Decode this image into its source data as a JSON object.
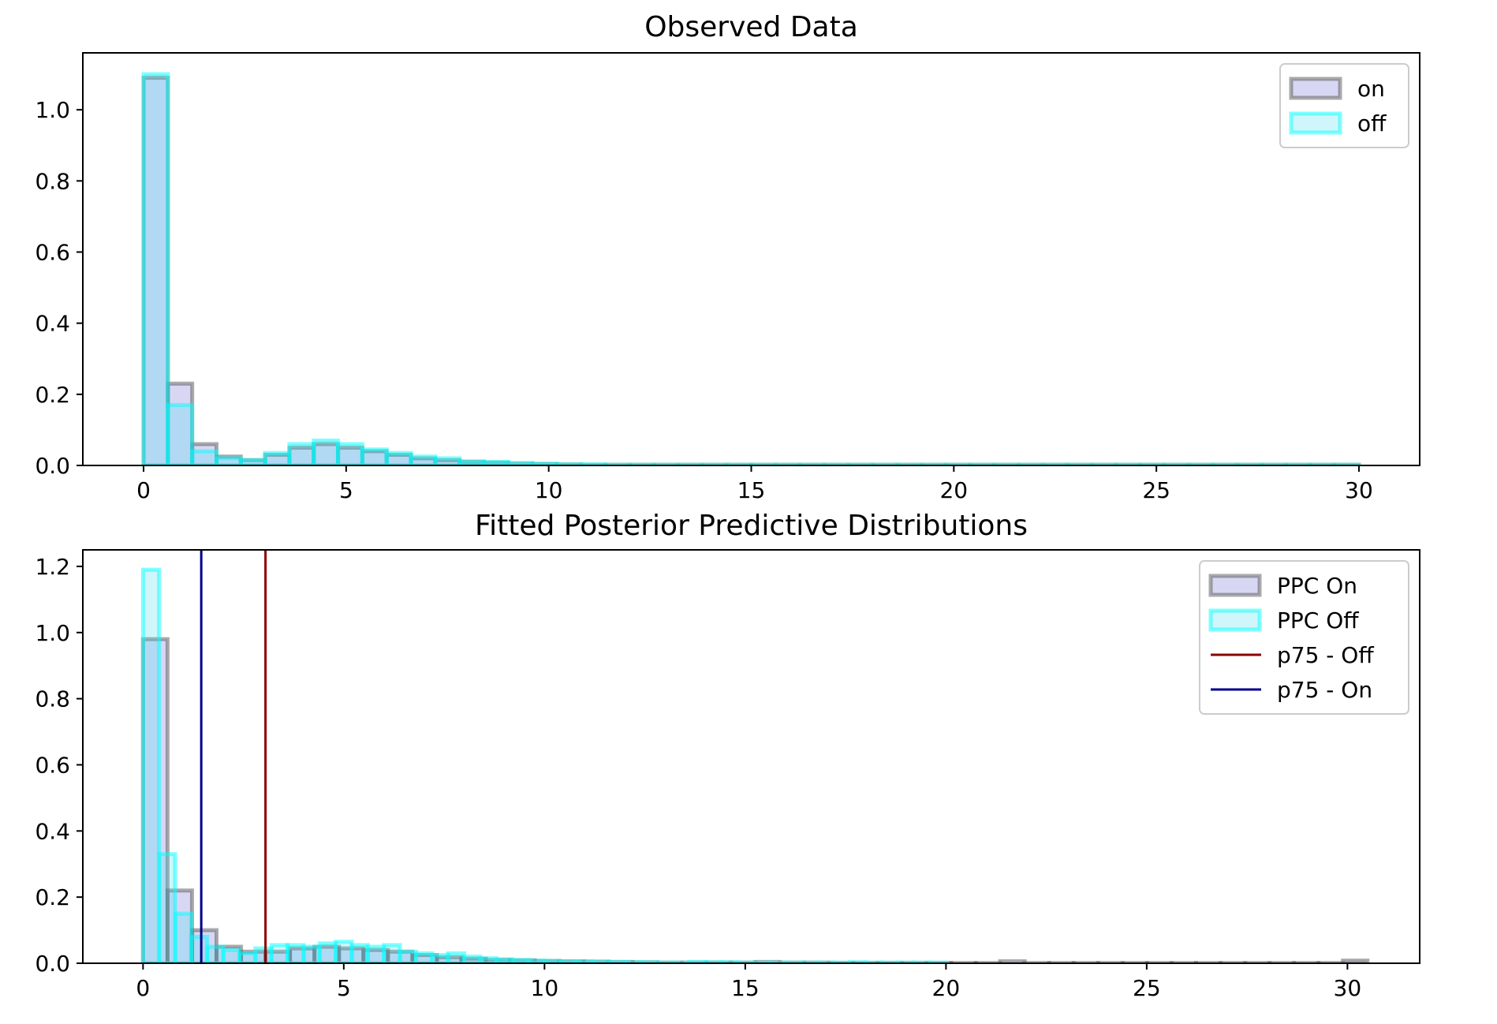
{
  "chart_data": [
    {
      "type": "histogram",
      "title": "Observed Data",
      "xlabel": "",
      "ylabel": "",
      "xlim": [
        -1.5,
        31.5
      ],
      "ylim": [
        0,
        1.16
      ],
      "xticks": [
        0,
        5,
        10,
        15,
        20,
        25,
        30
      ],
      "yticks": [
        0.0,
        0.2,
        0.4,
        0.6,
        0.8,
        1.0
      ],
      "ytick_format": 1,
      "grid": false,
      "legend_position": "top-right",
      "bin_width": 0.6,
      "series": [
        {
          "name": "on",
          "style": "on",
          "bins": [
            [
              0.0,
              1.09
            ],
            [
              0.6,
              0.23
            ],
            [
              1.2,
              0.06
            ],
            [
              1.8,
              0.025
            ],
            [
              2.4,
              0.015
            ],
            [
              3.0,
              0.03
            ],
            [
              3.6,
              0.05
            ],
            [
              4.2,
              0.06
            ],
            [
              4.8,
              0.05
            ],
            [
              5.4,
              0.04
            ],
            [
              6.0,
              0.03
            ],
            [
              6.6,
              0.02
            ],
            [
              7.2,
              0.015
            ],
            [
              7.8,
              0.01
            ],
            [
              8.4,
              0.008
            ],
            [
              9.0,
              0.005
            ],
            [
              9.6,
              0.004
            ],
            [
              10.2,
              0.003
            ],
            [
              10.8,
              0.002
            ],
            [
              11.4,
              0.002
            ],
            [
              12.0,
              0.002
            ],
            [
              12.6,
              0.002
            ],
            [
              13.2,
              0.002
            ],
            [
              13.8,
              0.002
            ],
            [
              14.4,
              0.002
            ],
            [
              15.0,
              0.002
            ],
            [
              15.6,
              0.002
            ],
            [
              16.2,
              0.002
            ],
            [
              16.8,
              0.002
            ],
            [
              17.4,
              0.002
            ],
            [
              18.0,
              0.002
            ],
            [
              18.6,
              0.002
            ],
            [
              19.2,
              0.002
            ],
            [
              19.8,
              0.002
            ],
            [
              20.4,
              0.002
            ],
            [
              21.0,
              0.002
            ],
            [
              21.6,
              0.002
            ],
            [
              22.2,
              0.002
            ],
            [
              22.8,
              0.002
            ],
            [
              23.4,
              0.002
            ],
            [
              24.0,
              0.002
            ],
            [
              24.6,
              0.002
            ],
            [
              25.2,
              0.002
            ],
            [
              25.8,
              0.002
            ],
            [
              26.4,
              0.002
            ],
            [
              27.0,
              0.002
            ],
            [
              27.6,
              0.002
            ],
            [
              28.2,
              0.002
            ],
            [
              28.8,
              0.002
            ],
            [
              29.4,
              0.002
            ]
          ]
        },
        {
          "name": "off",
          "style": "off",
          "bins": [
            [
              0.0,
              1.1
            ],
            [
              0.6,
              0.17
            ],
            [
              1.2,
              0.04
            ],
            [
              1.8,
              0.02
            ],
            [
              2.4,
              0.015
            ],
            [
              3.0,
              0.035
            ],
            [
              3.6,
              0.06
            ],
            [
              4.2,
              0.07
            ],
            [
              4.8,
              0.06
            ],
            [
              5.4,
              0.045
            ],
            [
              6.0,
              0.035
            ],
            [
              6.6,
              0.025
            ],
            [
              7.2,
              0.02
            ],
            [
              7.8,
              0.012
            ],
            [
              8.4,
              0.01
            ],
            [
              9.0,
              0.007
            ],
            [
              9.6,
              0.005
            ],
            [
              10.2,
              0.003
            ],
            [
              10.8,
              0.003
            ],
            [
              11.4,
              0.002
            ],
            [
              12.0,
              0.002
            ],
            [
              12.6,
              0.002
            ],
            [
              13.2,
              0.002
            ],
            [
              13.8,
              0.002
            ],
            [
              14.4,
              0.002
            ],
            [
              15.0,
              0.002
            ],
            [
              15.6,
              0.002
            ],
            [
              16.2,
              0.002
            ],
            [
              16.8,
              0.002
            ],
            [
              17.4,
              0.002
            ],
            [
              18.0,
              0.002
            ],
            [
              18.6,
              0.002
            ],
            [
              19.2,
              0.002
            ],
            [
              19.8,
              0.002
            ],
            [
              20.4,
              0.002
            ],
            [
              21.0,
              0.002
            ],
            [
              21.6,
              0.002
            ],
            [
              22.2,
              0.002
            ],
            [
              22.8,
              0.002
            ],
            [
              23.4,
              0.002
            ],
            [
              24.0,
              0.002
            ],
            [
              24.6,
              0.002
            ],
            [
              25.2,
              0.002
            ],
            [
              25.8,
              0.002
            ],
            [
              26.4,
              0.002
            ],
            [
              27.0,
              0.002
            ],
            [
              27.6,
              0.002
            ],
            [
              28.2,
              0.002
            ],
            [
              28.8,
              0.002
            ],
            [
              29.4,
              0.002
            ]
          ]
        }
      ],
      "vlines": []
    },
    {
      "type": "histogram",
      "title": "Fitted Posterior Predictive Distributions",
      "xlabel": "",
      "ylabel": "",
      "xlim": [
        -1.5,
        31.8
      ],
      "ylim": [
        0,
        1.25
      ],
      "xticks": [
        0,
        5,
        10,
        15,
        20,
        25,
        30
      ],
      "yticks": [
        0.0,
        0.2,
        0.4,
        0.6,
        0.8,
        1.0,
        1.2
      ],
      "ytick_format": 1,
      "grid": false,
      "legend_position": "top-right",
      "series": [
        {
          "name": "PPC On",
          "style": "on",
          "bin_width": 0.61,
          "bins": [
            [
              0.0,
              0.98
            ],
            [
              0.61,
              0.22
            ],
            [
              1.22,
              0.1
            ],
            [
              1.83,
              0.05
            ],
            [
              2.44,
              0.035
            ],
            [
              3.05,
              0.035
            ],
            [
              3.66,
              0.045
            ],
            [
              4.27,
              0.05
            ],
            [
              4.88,
              0.045
            ],
            [
              5.49,
              0.04
            ],
            [
              6.1,
              0.035
            ],
            [
              6.71,
              0.025
            ],
            [
              7.32,
              0.018
            ],
            [
              7.93,
              0.014
            ],
            [
              8.54,
              0.01
            ],
            [
              9.15,
              0.009
            ],
            [
              9.76,
              0.007
            ],
            [
              10.37,
              0.006
            ],
            [
              10.98,
              0.005
            ],
            [
              11.59,
              0.004
            ],
            [
              12.2,
              0.003
            ],
            [
              12.81,
              0.002
            ],
            [
              13.42,
              0.002
            ],
            [
              14.03,
              0.002
            ],
            [
              14.64,
              0.002
            ],
            [
              15.25,
              0.004
            ],
            [
              15.86,
              0.002
            ],
            [
              16.47,
              0.002
            ],
            [
              17.08,
              0.001
            ],
            [
              17.69,
              0.001
            ],
            [
              18.3,
              0.001
            ],
            [
              18.91,
              0.001
            ],
            [
              19.52,
              0.001
            ],
            [
              20.13,
              0.001
            ],
            [
              20.74,
              0.001
            ],
            [
              21.35,
              0.006
            ],
            [
              21.96,
              0.001
            ],
            [
              22.57,
              0.001
            ],
            [
              23.18,
              0.001
            ],
            [
              23.79,
              0.001
            ],
            [
              24.4,
              0.001
            ],
            [
              25.01,
              0.001
            ],
            [
              25.62,
              0.001
            ],
            [
              26.23,
              0.001
            ],
            [
              26.84,
              0.001
            ],
            [
              27.45,
              0.001
            ],
            [
              28.06,
              0.001
            ],
            [
              28.67,
              0.001
            ],
            [
              29.28,
              0.001
            ],
            [
              29.89,
              0.008
            ]
          ]
        },
        {
          "name": "PPC Off",
          "style": "off",
          "bin_width": 0.4,
          "bins": [
            [
              0.0,
              1.19
            ],
            [
              0.4,
              0.33
            ],
            [
              0.8,
              0.15
            ],
            [
              1.2,
              0.08
            ],
            [
              1.6,
              0.05
            ],
            [
              2.0,
              0.04
            ],
            [
              2.4,
              0.03
            ],
            [
              2.8,
              0.045
            ],
            [
              3.2,
              0.055
            ],
            [
              3.6,
              0.055
            ],
            [
              4.0,
              0.05
            ],
            [
              4.4,
              0.06
            ],
            [
              4.8,
              0.065
            ],
            [
              5.2,
              0.055
            ],
            [
              5.6,
              0.05
            ],
            [
              6.0,
              0.055
            ],
            [
              6.4,
              0.035
            ],
            [
              6.8,
              0.03
            ],
            [
              7.2,
              0.025
            ],
            [
              7.6,
              0.03
            ],
            [
              8.0,
              0.02
            ],
            [
              8.4,
              0.015
            ],
            [
              8.8,
              0.012
            ],
            [
              9.2,
              0.01
            ],
            [
              9.6,
              0.008
            ],
            [
              10.0,
              0.007
            ],
            [
              10.4,
              0.006
            ],
            [
              10.8,
              0.006
            ],
            [
              11.2,
              0.004
            ],
            [
              11.6,
              0.004
            ],
            [
              12.0,
              0.003
            ],
            [
              12.4,
              0.003
            ],
            [
              12.8,
              0.002
            ],
            [
              13.2,
              0.002
            ],
            [
              13.6,
              0.004
            ],
            [
              14.0,
              0.003
            ],
            [
              14.4,
              0.003
            ],
            [
              14.8,
              0.002
            ],
            [
              15.2,
              0.002
            ],
            [
              15.6,
              0.002
            ],
            [
              16.0,
              0.002
            ],
            [
              16.4,
              0.002
            ],
            [
              16.8,
              0.002
            ],
            [
              17.2,
              0.002
            ],
            [
              17.6,
              0.003
            ],
            [
              18.0,
              0.002
            ],
            [
              18.4,
              0.002
            ],
            [
              18.8,
              0.002
            ],
            [
              19.2,
              0.002
            ],
            [
              19.6,
              0.002
            ]
          ]
        }
      ],
      "vlines": [
        {
          "name": "p75 - Off",
          "x": 3.05,
          "color": "#8b0000"
        },
        {
          "name": "p75 - On",
          "x": 1.45,
          "color": "#00008b"
        }
      ]
    }
  ],
  "styles": {
    "on": {
      "fill": "#8c8ce0",
      "fill_opacity": 0.35,
      "stroke": "#555555",
      "stroke_opacity": 0.5
    },
    "off": {
      "fill": "#40e0f0",
      "fill_opacity": 0.25,
      "stroke": "#00ffff",
      "stroke_opacity": 0.5
    }
  }
}
